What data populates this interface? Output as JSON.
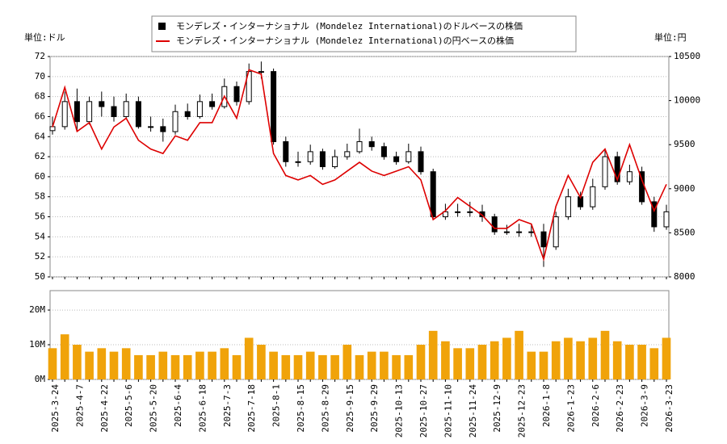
{
  "chart_data": [
    {
      "type": "candlestick",
      "y_unit_label": "単位:ドル",
      "y2_unit_label": "単位:円",
      "ylim": [
        50,
        72
      ],
      "yticks": [
        50,
        52,
        54,
        56,
        58,
        60,
        62,
        64,
        66,
        68,
        70,
        72
      ],
      "y2lim": [
        8000,
        10500
      ],
      "y2ticks": [
        8000,
        8500,
        9000,
        9500,
        10000,
        10500
      ],
      "grid": true,
      "series": [
        {
          "name": "モンデレズ・インターナショナル (Mondelez International)のドルベースの株価",
          "color": "#000000",
          "open": [
            64.6,
            65,
            67.5,
            65.5,
            67.5,
            67,
            66,
            67.5,
            65,
            65,
            64.5,
            66.5,
            66,
            67.5,
            67,
            69,
            67.5,
            70.5,
            70.5,
            63.5,
            61.5,
            61.5,
            62.5,
            61,
            62,
            62.5,
            63.5,
            63,
            62,
            61.5,
            62.5,
            60.5,
            56,
            56.5,
            56.5,
            56.5,
            56,
            54.5,
            54.5,
            54.5,
            54.5,
            53,
            56,
            58,
            57,
            59,
            62,
            59.5,
            60.5,
            57.5,
            55
          ],
          "high": [
            66,
            68.5,
            68.8,
            68,
            68.5,
            68,
            68.3,
            68,
            66,
            65.8,
            67.2,
            67.3,
            68.2,
            68.3,
            69.8,
            69.5,
            71.3,
            71.5,
            70.8,
            64,
            62.5,
            63.2,
            62.8,
            62.7,
            63.3,
            64.8,
            64,
            63.4,
            62.5,
            63.3,
            63,
            60.8,
            57.3,
            57.3,
            57.5,
            57.2,
            56.3,
            55.2,
            55.3,
            55.2,
            55.3,
            56.5,
            58.8,
            58.5,
            59.8,
            62.8,
            62.5,
            61.2,
            61,
            58,
            57.2
          ],
          "low": [
            64.2,
            64.7,
            64.5,
            65.2,
            66,
            65.5,
            65.8,
            64.8,
            64.5,
            63.5,
            64.2,
            65.7,
            65.8,
            66.7,
            66.8,
            67.1,
            67.2,
            69.8,
            63.2,
            61,
            61,
            61.2,
            60.7,
            60.8,
            61.7,
            62.3,
            62.6,
            61.7,
            61.2,
            61.3,
            60.2,
            55.8,
            55.7,
            56,
            56,
            55.5,
            54.2,
            54.2,
            54,
            54,
            51,
            52.7,
            55.7,
            56.7,
            56.7,
            58.7,
            59.2,
            59.2,
            57.2,
            54.5,
            54.7
          ],
          "close": [
            65,
            67.5,
            65.5,
            67.5,
            67,
            66,
            67.5,
            65,
            65,
            64.5,
            66.5,
            66,
            67.5,
            67,
            69,
            67.5,
            70.5,
            70.5,
            63.5,
            61.5,
            61.5,
            62.5,
            61,
            62,
            62.5,
            63.5,
            63,
            62,
            61.5,
            62.5,
            60.5,
            56,
            56.5,
            56.5,
            56.5,
            56,
            54.5,
            54.5,
            54.5,
            54.5,
            53,
            56,
            58,
            57,
            59,
            62,
            59.5,
            60.5,
            57.5,
            55,
            56.5
          ]
        },
        {
          "name": "モンデレズ・インターナショナル (Mondelez International)の円ベースの株価",
          "color": "#dd0000",
          "axis": "y2",
          "values": [
            9700,
            10150,
            9650,
            9750,
            9450,
            9700,
            9800,
            9550,
            9450,
            9400,
            9600,
            9550,
            9750,
            9750,
            10050,
            9800,
            10350,
            10300,
            9400,
            9150,
            9100,
            9150,
            9050,
            9100,
            9200,
            9300,
            9200,
            9150,
            9200,
            9250,
            9100,
            8650,
            8750,
            8900,
            8800,
            8700,
            8550,
            8550,
            8650,
            8600,
            8200,
            8800,
            9150,
            8900,
            9300,
            9450,
            9100,
            9500,
            9100,
            8750,
            9050
          ]
        }
      ]
    },
    {
      "type": "bar",
      "categories": [
        "2025-3-24",
        null,
        "2025-4-7",
        null,
        "2025-4-22",
        null,
        "2025-5-6",
        null,
        "2025-5-20",
        null,
        "2025-6-4",
        null,
        "2025-6-18",
        null,
        "2025-7-3",
        null,
        "2025-7-18",
        null,
        "2025-8-1",
        null,
        "2025-8-15",
        null,
        "2025-8-29",
        null,
        "2025-9-15",
        null,
        "2025-9-29",
        null,
        "2025-10-13",
        null,
        "2025-10-27",
        null,
        "2025-11-10",
        null,
        "2025-11-24",
        null,
        "2025-12-9",
        null,
        "2025-12-23",
        null,
        "2026-1-8",
        null,
        "2026-1-23",
        null,
        "2026-2-6",
        null,
        "2026-2-23",
        null,
        "2026-3-9",
        null,
        "2026-3-23"
      ],
      "ylim": [
        0,
        25600000
      ],
      "yticks": [
        {
          "value": 0,
          "label": "0M"
        },
        {
          "value": 10000000,
          "label": "10M"
        },
        {
          "value": 20000000,
          "label": "20M"
        }
      ],
      "grid": true,
      "series": [
        {
          "color": "#f0a30a",
          "values": [
            9000000,
            13000000,
            10000000,
            8000000,
            9000000,
            8000000,
            9000000,
            7000000,
            7000000,
            8000000,
            7000000,
            7000000,
            8000000,
            8000000,
            9000000,
            7000000,
            12000000,
            10000000,
            8000000,
            7000000,
            7000000,
            8000000,
            7000000,
            7000000,
            10000000,
            7000000,
            8000000,
            8000000,
            7000000,
            7000000,
            10000000,
            14000000,
            11000000,
            9000000,
            9000000,
            10000000,
            11000000,
            12000000,
            14000000,
            8000000,
            8000000,
            11000000,
            12000000,
            11000000,
            12000000,
            14000000,
            11000000,
            10000000,
            10000000,
            9000000,
            12000000
          ]
        }
      ]
    }
  ]
}
